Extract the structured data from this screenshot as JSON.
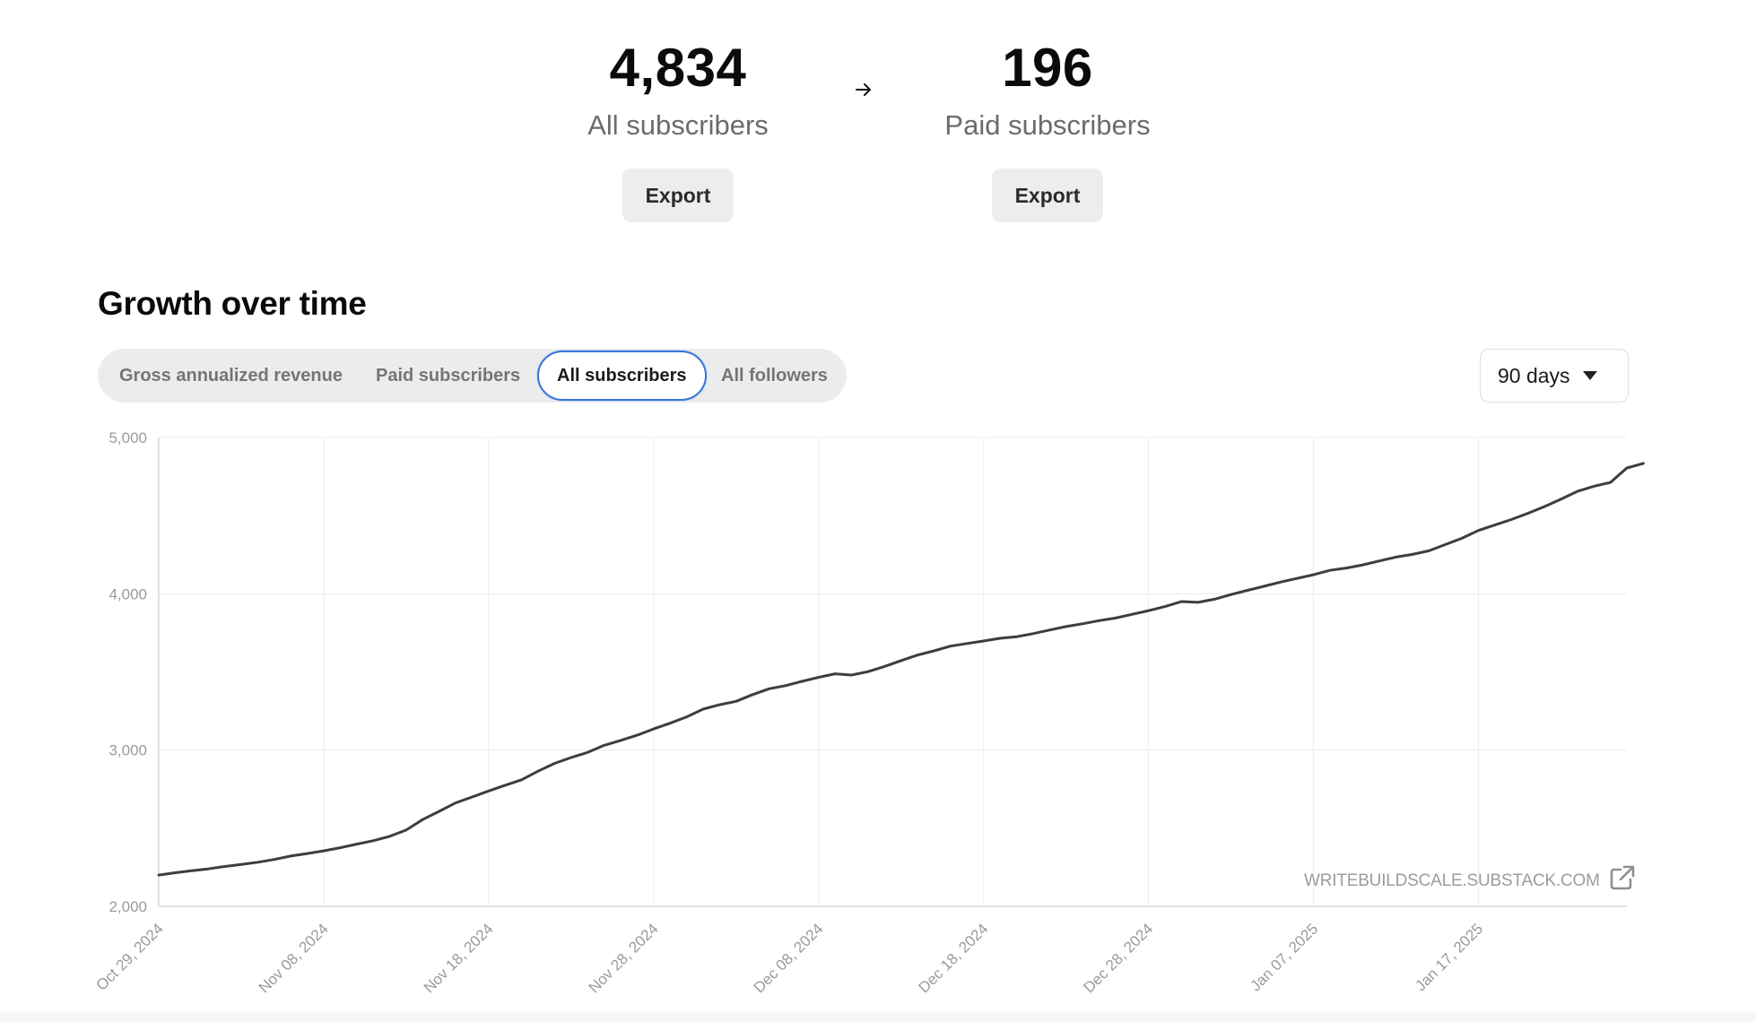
{
  "stats": {
    "all_subscribers": {
      "value": "4,834",
      "label": "All subscribers",
      "export_label": "Export"
    },
    "paid_subscribers": {
      "value": "196",
      "label": "Paid subscribers",
      "export_label": "Export"
    },
    "arrow_icon": "arrow-right-icon"
  },
  "growth": {
    "title": "Growth over time",
    "tabs": [
      {
        "label": "Gross annualized revenue",
        "active": false
      },
      {
        "label": "Paid subscribers",
        "active": false
      },
      {
        "label": "All subscribers",
        "active": true
      },
      {
        "label": "All followers",
        "active": false
      }
    ],
    "range": {
      "selected": "90 days",
      "icon": "caret-down-icon"
    },
    "watermark": {
      "text": "WRITEBUILDSCALE.SUBSTACK.COM",
      "icon": "external-link-icon"
    }
  },
  "colors": {
    "line": "#3d3d3d",
    "grid": "#ececec",
    "axis": "#d9d9d9",
    "active_tab_border": "#3a74d9"
  },
  "chart_data": {
    "type": "line",
    "title": "",
    "xlabel": "",
    "ylabel": "",
    "ylim": [
      2000,
      5000
    ],
    "yticks": [
      2000,
      3000,
      4000,
      5000
    ],
    "ytick_labels": [
      "2,000",
      "3,000",
      "4,000",
      "5,000"
    ],
    "x_start": "2024-10-29",
    "x_end": "2025-01-26",
    "xtick_dates": [
      "2024-10-29",
      "2024-11-08",
      "2024-11-18",
      "2024-11-28",
      "2024-12-08",
      "2024-12-18",
      "2024-12-28",
      "2025-01-07",
      "2025-01-17"
    ],
    "xtick_labels": [
      "Oct 29, 2024",
      "Nov 08, 2024",
      "Nov 18, 2024",
      "Nov 28, 2024",
      "Dec 08, 2024",
      "Dec 18, 2024",
      "Dec 28, 2024",
      "Jan 07, 2025",
      "Jan 17, 2025"
    ],
    "grid": true,
    "series": [
      {
        "points": [
          [
            "2024-10-29",
            2200
          ],
          [
            "2024-10-30",
            2215
          ],
          [
            "2024-10-31",
            2228
          ],
          [
            "2024-11-01",
            2240
          ],
          [
            "2024-11-02",
            2255
          ],
          [
            "2024-11-03",
            2268
          ],
          [
            "2024-11-04",
            2282
          ],
          [
            "2024-11-05",
            2300
          ],
          [
            "2024-11-06",
            2322
          ],
          [
            "2024-11-07",
            2338
          ],
          [
            "2024-11-08",
            2355
          ],
          [
            "2024-11-09",
            2375
          ],
          [
            "2024-11-10",
            2398
          ],
          [
            "2024-11-11",
            2420
          ],
          [
            "2024-11-12",
            2448
          ],
          [
            "2024-11-13",
            2488
          ],
          [
            "2024-11-14",
            2555
          ],
          [
            "2024-11-15",
            2608
          ],
          [
            "2024-11-16",
            2662
          ],
          [
            "2024-11-17",
            2700
          ],
          [
            "2024-11-18",
            2738
          ],
          [
            "2024-11-19",
            2775
          ],
          [
            "2024-11-20",
            2810
          ],
          [
            "2024-11-21",
            2865
          ],
          [
            "2024-11-22",
            2915
          ],
          [
            "2024-11-23",
            2952
          ],
          [
            "2024-11-24",
            2985
          ],
          [
            "2024-11-25",
            3030
          ],
          [
            "2024-11-26",
            3062
          ],
          [
            "2024-11-27",
            3095
          ],
          [
            "2024-11-28",
            3135
          ],
          [
            "2024-11-29",
            3172
          ],
          [
            "2024-11-30",
            3212
          ],
          [
            "2024-12-01",
            3262
          ],
          [
            "2024-12-02",
            3290
          ],
          [
            "2024-12-03",
            3312
          ],
          [
            "2024-12-04",
            3355
          ],
          [
            "2024-12-05",
            3392
          ],
          [
            "2024-12-06",
            3412
          ],
          [
            "2024-12-07",
            3440
          ],
          [
            "2024-12-08",
            3465
          ],
          [
            "2024-12-09",
            3488
          ],
          [
            "2024-12-10",
            3480
          ],
          [
            "2024-12-11",
            3502
          ],
          [
            "2024-12-12",
            3535
          ],
          [
            "2024-12-13",
            3572
          ],
          [
            "2024-12-14",
            3608
          ],
          [
            "2024-12-15",
            3635
          ],
          [
            "2024-12-16",
            3665
          ],
          [
            "2024-12-17",
            3682
          ],
          [
            "2024-12-18",
            3698
          ],
          [
            "2024-12-19",
            3715
          ],
          [
            "2024-12-20",
            3725
          ],
          [
            "2024-12-21",
            3745
          ],
          [
            "2024-12-22",
            3768
          ],
          [
            "2024-12-23",
            3790
          ],
          [
            "2024-12-24",
            3808
          ],
          [
            "2024-12-25",
            3828
          ],
          [
            "2024-12-26",
            3845
          ],
          [
            "2024-12-27",
            3868
          ],
          [
            "2024-12-28",
            3892
          ],
          [
            "2024-12-29",
            3918
          ],
          [
            "2024-12-30",
            3950
          ],
          [
            "2024-12-31",
            3945
          ],
          [
            "2025-01-01",
            3965
          ],
          [
            "2025-01-02",
            3995
          ],
          [
            "2025-01-03",
            4022
          ],
          [
            "2025-01-04",
            4048
          ],
          [
            "2025-01-05",
            4075
          ],
          [
            "2025-01-06",
            4098
          ],
          [
            "2025-01-07",
            4122
          ],
          [
            "2025-01-08",
            4150
          ],
          [
            "2025-01-09",
            4165
          ],
          [
            "2025-01-10",
            4185
          ],
          [
            "2025-01-11",
            4210
          ],
          [
            "2025-01-12",
            4235
          ],
          [
            "2025-01-13",
            4252
          ],
          [
            "2025-01-14",
            4275
          ],
          [
            "2025-01-15",
            4315
          ],
          [
            "2025-01-16",
            4355
          ],
          [
            "2025-01-17",
            4405
          ],
          [
            "2025-01-18",
            4440
          ],
          [
            "2025-01-19",
            4475
          ],
          [
            "2025-01-20",
            4515
          ],
          [
            "2025-01-21",
            4558
          ],
          [
            "2025-01-22",
            4605
          ],
          [
            "2025-01-23",
            4655
          ],
          [
            "2025-01-24",
            4688
          ],
          [
            "2025-01-25",
            4712
          ],
          [
            "2025-01-26",
            4805
          ],
          [
            "2025-01-27",
            4834
          ]
        ]
      }
    ]
  }
}
